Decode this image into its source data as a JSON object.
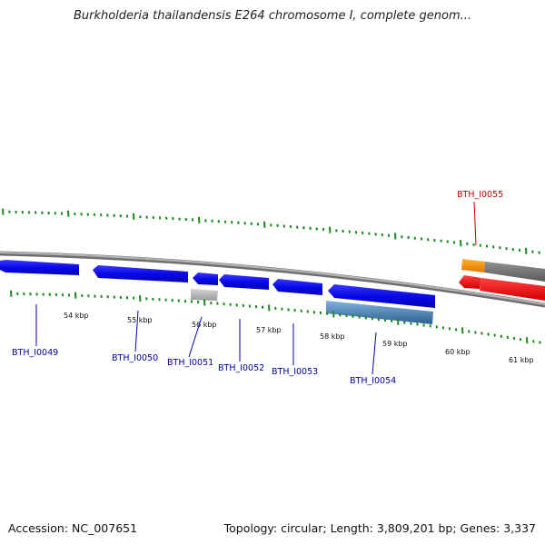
{
  "title": "Burkholderia thailandensis E264 chromosome I, complete genom...",
  "footer": {
    "accession": "Accession: NC_007651",
    "summary": "Topology: circular; Length: 3,809,201 bp; Genes: 3,337"
  },
  "colors": {
    "forward_gene": "#0a0af5",
    "reverse_gene": "#0a0af5",
    "rna_gene": "#4a86bd",
    "pseudo_gene": "#bdbdbd",
    "highlight_gene": "#ff1010",
    "highlight_gene_top": "#ff8c00",
    "adjacent_gene_top": "#808080",
    "tick_color": "#1a8a1a",
    "label_color": "#0000a0",
    "highlight_label_color": "#c00000",
    "backbone": "#9a9a9a"
  },
  "scale_ticks": [
    {
      "label": "54 kbp"
    },
    {
      "label": "55 kbp"
    },
    {
      "label": "56 kbp"
    },
    {
      "label": "57 kbp"
    },
    {
      "label": "58 kbp"
    },
    {
      "label": "59 kbp"
    },
    {
      "label": "60 kbp"
    },
    {
      "label": "61 kbp"
    }
  ],
  "genes": [
    {
      "locus": "BTH_I0049"
    },
    {
      "locus": "BTH_I0050"
    },
    {
      "locus": "BTH_I0051"
    },
    {
      "locus": "BTH_I0052"
    },
    {
      "locus": "BTH_I0053"
    },
    {
      "locus": "BTH_I0054"
    },
    {
      "locus": "BTH_I0055"
    }
  ]
}
